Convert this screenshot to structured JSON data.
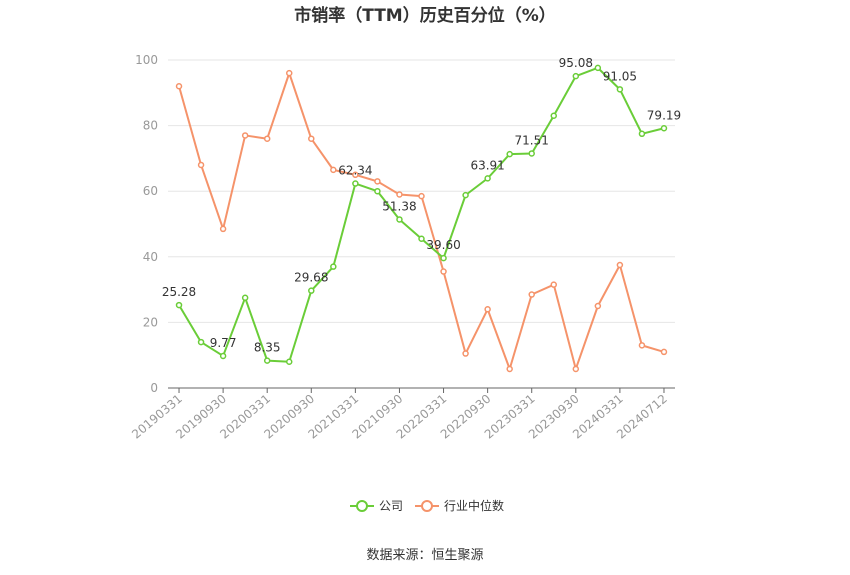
{
  "chart_data": {
    "type": "line",
    "title": "市销率（TTM）历史百分位（%）",
    "source": "数据来源：恒生聚源",
    "ylim": [
      0,
      100
    ],
    "yticks": [
      "0",
      "20",
      "40",
      "60",
      "80",
      "100"
    ],
    "x_tick_labels": [
      "20190331",
      "20190930",
      "20200331",
      "20200930",
      "20210331",
      "20210930",
      "20220331",
      "20220930",
      "20230331",
      "20230930",
      "20240331",
      "20240712"
    ],
    "x": [
      "20190331",
      "20190630",
      "20190930",
      "20191231",
      "20200331",
      "20200630",
      "20200930",
      "20201231",
      "20210331",
      "20210630",
      "20210930",
      "20211231",
      "20220331",
      "20220630",
      "20220930",
      "20221231",
      "20230331",
      "20230630",
      "20230930",
      "20231231",
      "20240331",
      "20240630",
      "20240712"
    ],
    "series": [
      {
        "name": "公司",
        "color": "#6acd38",
        "values": [
          25.28,
          14.0,
          9.77,
          27.5,
          8.35,
          8.0,
          29.68,
          37.0,
          62.34,
          60.0,
          51.38,
          45.5,
          39.6,
          58.8,
          63.91,
          71.3,
          71.51,
          83.0,
          95.08,
          97.6,
          91.05,
          77.5,
          79.19
        ],
        "labels": {
          "0": "25.28",
          "2": "9.77",
          "4": "8.35",
          "6": "29.68",
          "8": "62.34",
          "10": "51.38",
          "12": "39.60",
          "14": "63.91",
          "16": "71.51",
          "18": "95.08",
          "20": "91.05",
          "22": "79.19"
        }
      },
      {
        "name": "行业中位数",
        "color": "#f5936a",
        "values": [
          92.0,
          68.0,
          48.5,
          77.0,
          76.0,
          96.0,
          76.0,
          66.5,
          65.0,
          63.0,
          59.0,
          58.5,
          35.5,
          10.5,
          24.0,
          5.8,
          28.5,
          31.5,
          5.8,
          25.0,
          37.5,
          13.0,
          11.0
        ],
        "labels": {}
      }
    ],
    "legend_position": "bottom",
    "grid": true
  }
}
